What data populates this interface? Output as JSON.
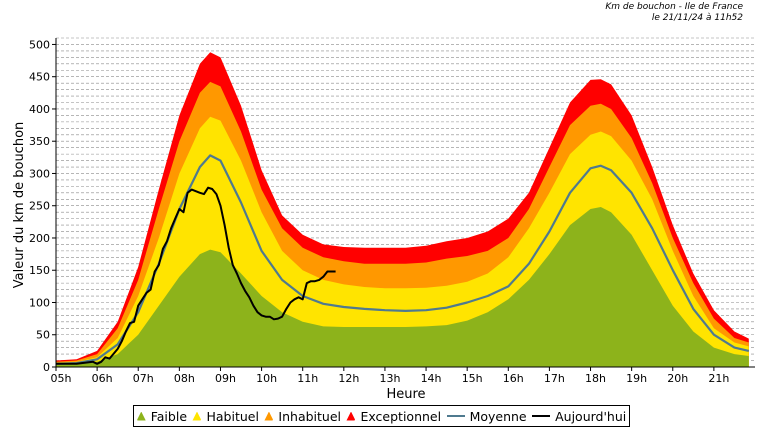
{
  "header": {
    "line1": "Km de bouchon - Ile de France",
    "line2": "le 21/11/24 à 11h52"
  },
  "legend": [
    {
      "label": "Faible",
      "color": "#8db31b",
      "kind": "fill"
    },
    {
      "label": "Habituel",
      "color": "#ffe400",
      "kind": "fill"
    },
    {
      "label": "Inhabituel",
      "color": "#ff9800",
      "kind": "fill"
    },
    {
      "label": "Exceptionnel",
      "color": "#ff0000",
      "kind": "fill"
    },
    {
      "label": "Moyenne",
      "color": "#4f7a8f",
      "kind": "line"
    },
    {
      "label": "Aujourd'hui",
      "color": "#000000",
      "kind": "line"
    }
  ],
  "chart_data": {
    "type": "area",
    "title": "",
    "xlabel": "Heure",
    "ylabel": "Valeur du  km de bouchon",
    "xlim": [
      5,
      22
    ],
    "ylim": [
      0,
      510
    ],
    "y_ticks": [
      0,
      50,
      100,
      150,
      200,
      250,
      300,
      350,
      400,
      450,
      500
    ],
    "x_ticks": [
      {
        "x": 5,
        "label": "05h"
      },
      {
        "x": 6,
        "label": "06h"
      },
      {
        "x": 7,
        "label": "07h"
      },
      {
        "x": 8,
        "label": "08h"
      },
      {
        "x": 9,
        "label": "09h"
      },
      {
        "x": 10,
        "label": "10h"
      },
      {
        "x": 11,
        "label": "11h"
      },
      {
        "x": 12,
        "label": "12h"
      },
      {
        "x": 13,
        "label": "13h"
      },
      {
        "x": 14,
        "label": "14h"
      },
      {
        "x": 15,
        "label": "15h"
      },
      {
        "x": 16,
        "label": "16h"
      },
      {
        "x": 17,
        "label": "17h"
      },
      {
        "x": 18,
        "label": "18h"
      },
      {
        "x": 19,
        "label": "19h"
      },
      {
        "x": 20,
        "label": "20h"
      },
      {
        "x": 21,
        "label": "21h"
      }
    ],
    "grid": "horizontal-dashed",
    "legend_position": "bottom",
    "bands": {
      "x": [
        5,
        5.5,
        6,
        6.5,
        7,
        7.5,
        8,
        8.5,
        8.75,
        9,
        9.5,
        10,
        10.5,
        11,
        11.5,
        12,
        12.5,
        13,
        13.5,
        14,
        14.5,
        15,
        15.5,
        16,
        16.5,
        17,
        17.5,
        18,
        18.25,
        18.5,
        19,
        19.5,
        20,
        20.5,
        21,
        21.5,
        21.85
      ],
      "faible": [
        5,
        5,
        8,
        20,
        50,
        95,
        140,
        175,
        182,
        178,
        145,
        110,
        85,
        70,
        63,
        62,
        62,
        62,
        62,
        63,
        65,
        72,
        85,
        105,
        135,
        175,
        220,
        245,
        248,
        240,
        205,
        150,
        95,
        55,
        30,
        20,
        17
      ],
      "habituel": [
        7,
        8,
        15,
        45,
        110,
        200,
        300,
        370,
        388,
        382,
        320,
        240,
        180,
        150,
        135,
        128,
        124,
        122,
        122,
        123,
        126,
        132,
        145,
        170,
        215,
        270,
        330,
        360,
        365,
        358,
        320,
        260,
        180,
        110,
        60,
        38,
        32
      ],
      "inhabituel": [
        8,
        10,
        20,
        60,
        135,
        245,
        350,
        425,
        442,
        435,
        365,
        275,
        215,
        185,
        170,
        164,
        160,
        160,
        160,
        162,
        168,
        172,
        180,
        200,
        245,
        310,
        375,
        405,
        408,
        400,
        355,
        285,
        200,
        130,
        75,
        45,
        38
      ],
      "exceptionnel": [
        10,
        12,
        25,
        70,
        155,
        275,
        390,
        470,
        488,
        480,
        405,
        305,
        235,
        205,
        190,
        186,
        185,
        185,
        185,
        188,
        195,
        200,
        210,
        230,
        270,
        340,
        410,
        445,
        446,
        438,
        390,
        310,
        220,
        145,
        88,
        55,
        44
      ]
    },
    "series": [
      {
        "name": "Moyenne",
        "x": [
          5,
          5.5,
          6,
          6.5,
          7,
          7.5,
          8,
          8.5,
          8.75,
          9,
          9.5,
          10,
          10.5,
          11,
          11.5,
          12,
          12.5,
          13,
          13.5,
          14,
          14.5,
          15,
          15.5,
          16,
          16.5,
          17,
          17.5,
          18,
          18.25,
          18.5,
          19,
          19.5,
          20,
          20.5,
          21,
          21.5,
          21.85
        ],
        "values": [
          5,
          6,
          12,
          35,
          85,
          160,
          245,
          310,
          328,
          320,
          255,
          180,
          135,
          110,
          98,
          93,
          90,
          88,
          87,
          88,
          92,
          100,
          110,
          125,
          160,
          210,
          270,
          308,
          312,
          305,
          270,
          215,
          150,
          90,
          50,
          30,
          25
        ]
      },
      {
        "name": "Aujourd'hui",
        "x": [
          5,
          5.5,
          5.9,
          6.0,
          6.1,
          6.2,
          6.3,
          6.5,
          6.6,
          6.7,
          6.8,
          6.9,
          7.0,
          7.1,
          7.2,
          7.3,
          7.4,
          7.5,
          7.6,
          7.7,
          7.8,
          7.9,
          8.0,
          8.1,
          8.2,
          8.3,
          8.5,
          8.6,
          8.7,
          8.8,
          8.9,
          9.0,
          9.1,
          9.2,
          9.3,
          9.4,
          9.5,
          9.6,
          9.7,
          9.8,
          9.9,
          10.0,
          10.1,
          10.2,
          10.3,
          10.4,
          10.5,
          10.6,
          10.7,
          10.8,
          10.9,
          11.0,
          11.1,
          11.2,
          11.3,
          11.4,
          11.5,
          11.6,
          11.7,
          11.8
        ],
        "values": [
          5,
          5,
          8,
          5,
          8,
          15,
          13,
          28,
          40,
          55,
          68,
          70,
          95,
          105,
          115,
          120,
          148,
          158,
          183,
          195,
          215,
          230,
          245,
          240,
          270,
          275,
          270,
          268,
          278,
          276,
          268,
          250,
          220,
          185,
          158,
          145,
          130,
          118,
          108,
          95,
          85,
          80,
          78,
          78,
          74,
          75,
          78,
          90,
          100,
          105,
          108,
          105,
          130,
          133,
          133,
          135,
          140,
          148,
          148,
          148
        ]
      }
    ]
  }
}
